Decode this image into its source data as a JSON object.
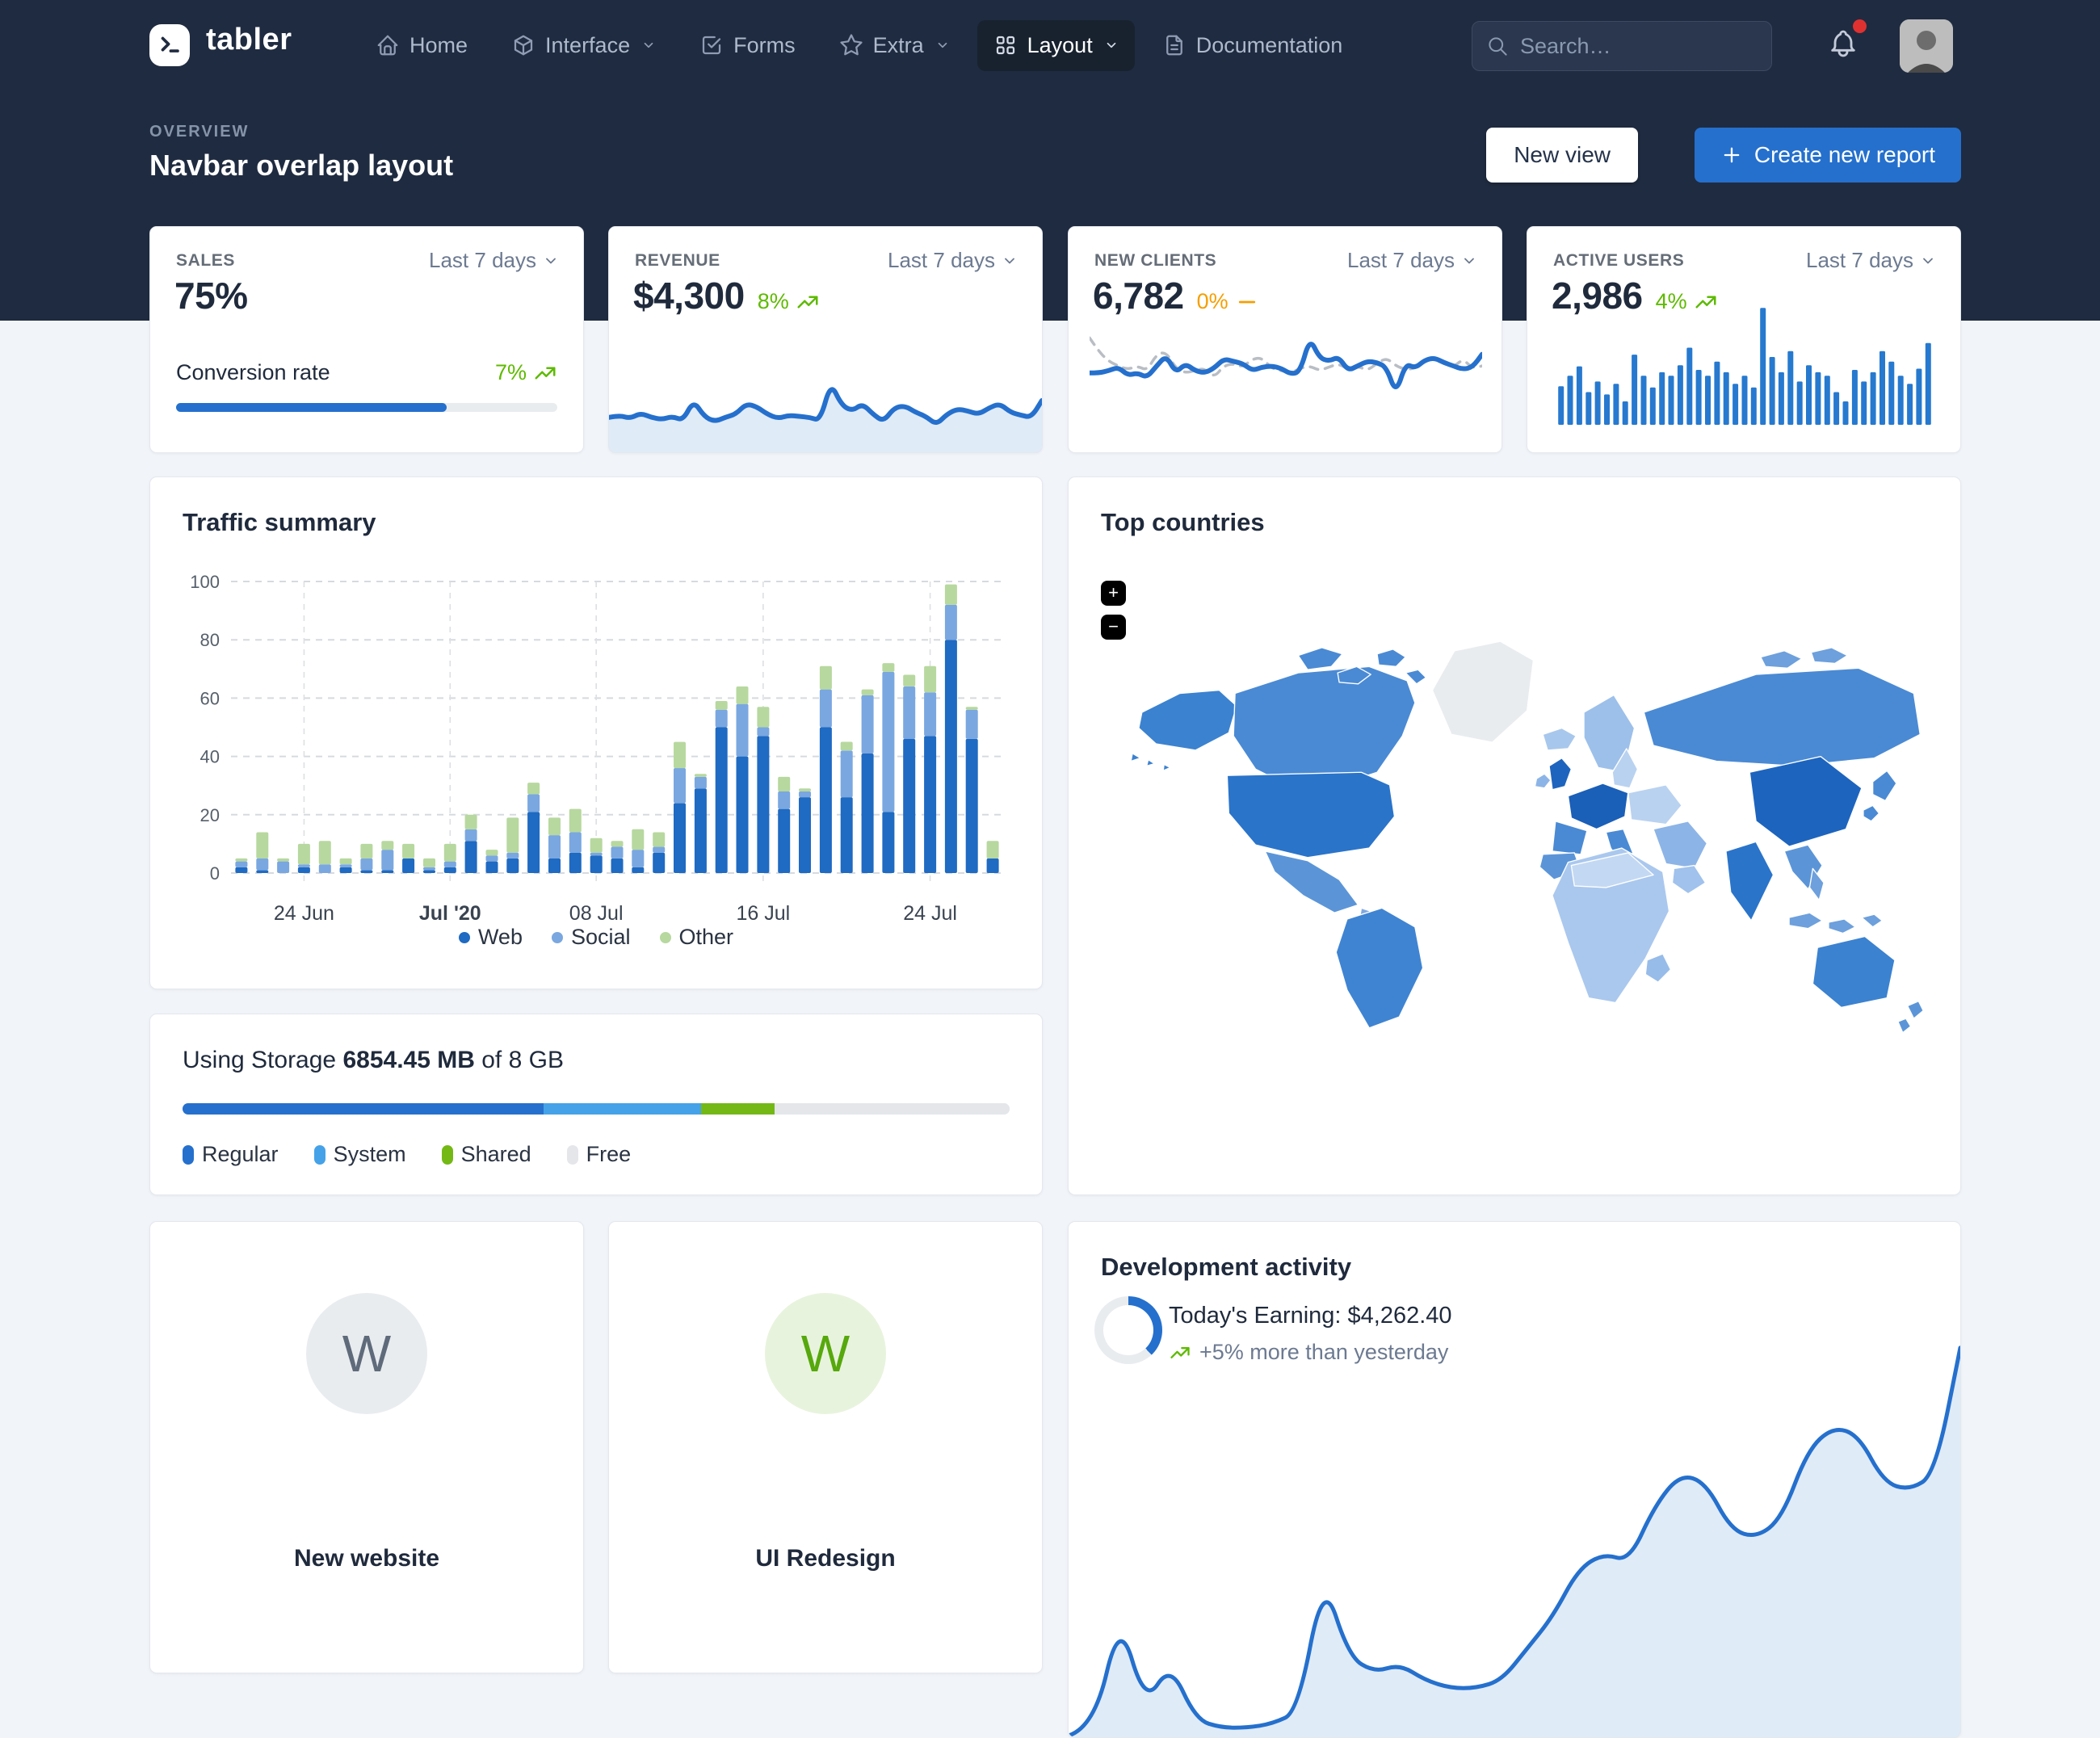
{
  "navbar": {
    "brand": "tabler",
    "items": [
      {
        "label": "Home",
        "icon": "home-icon",
        "chevron": false,
        "active": false
      },
      {
        "label": "Interface",
        "icon": "package-icon",
        "chevron": true,
        "active": false
      },
      {
        "label": "Forms",
        "icon": "checkbox-icon",
        "chevron": false,
        "active": false
      },
      {
        "label": "Extra",
        "icon": "star-icon",
        "chevron": true,
        "active": false
      },
      {
        "label": "Layout",
        "icon": "grid-icon",
        "chevron": true,
        "active": true
      },
      {
        "label": "Documentation",
        "icon": "file-text-icon",
        "chevron": false,
        "active": false
      }
    ],
    "search_placeholder": "Search…",
    "notification_dot_color": "#e03131"
  },
  "header": {
    "pretitle": "OVERVIEW",
    "title": "Navbar overlap layout",
    "new_view_label": "New view",
    "create_report_label": "Create new report"
  },
  "stats": {
    "sales": {
      "label": "SALES",
      "range": "Last 7 days",
      "value": "75%",
      "sub_label": "Conversion rate",
      "trend": "7%",
      "trend_dir": "up",
      "progress_pct": 71
    },
    "revenue": {
      "label": "REVENUE",
      "range": "Last 7 days",
      "value": "$4,300",
      "trend": "8%",
      "trend_dir": "up"
    },
    "clients": {
      "label": "NEW CLIENTS",
      "range": "Last 7 days",
      "value": "6,782",
      "trend": "0%",
      "trend_dir": "flat"
    },
    "users": {
      "label": "ACTIVE USERS",
      "range": "Last 7 days",
      "value": "2,986",
      "trend": "4%",
      "trend_dir": "up"
    }
  },
  "traffic": {
    "title": "Traffic summary",
    "legend": [
      {
        "label": "Web",
        "color": "#1f6ac2"
      },
      {
        "label": "Social",
        "color": "#7aa7e0"
      },
      {
        "label": "Other",
        "color": "#b7d89f"
      }
    ]
  },
  "countries": {
    "title": "Top countries",
    "zoom_in": "+",
    "zoom_out": "−"
  },
  "storage": {
    "prefix": "Using Storage",
    "used": "6854.45 MB",
    "mid": "of",
    "total": "8 GB",
    "segments": [
      {
        "label": "Regular",
        "pct": 43.7,
        "color": "#2570cd"
      },
      {
        "label": "System",
        "pct": 19.0,
        "color": "#45a2e8"
      },
      {
        "label": "Shared",
        "pct": 8.9,
        "color": "#74b816"
      },
      {
        "label": "Free",
        "pct": 28.4,
        "color": "#e4e6ea"
      }
    ]
  },
  "projects": [
    {
      "initial": "W",
      "name": "New website",
      "style": "gray"
    },
    {
      "initial": "W",
      "name": "UI Redesign",
      "style": "green"
    }
  ],
  "development": {
    "title": "Development activity",
    "earning": "Today's Earning: $4,262.40",
    "trend_note": "+5% more than yesterday",
    "ring_pct": 38,
    "ring_color": "#2570cd",
    "ring_track": "#e9ecef"
  },
  "colors": {
    "primary": "#2570cd",
    "green": "#5eba00",
    "yellow": "#f59f00",
    "navbar_bg": "#1f2b40",
    "page_bg": "#f1f4f9"
  },
  "chart_data": [
    {
      "id": "traffic-summary",
      "type": "bar",
      "stacked": true,
      "title": "Traffic summary",
      "xlabel": "",
      "ylabel": "",
      "ylim": [
        0,
        100
      ],
      "yticks": [
        0,
        20,
        40,
        60,
        80,
        100
      ],
      "grid": true,
      "legend_position": "bottom",
      "xticks": [
        {
          "index": 3,
          "label": "24 Jun",
          "bold": false
        },
        {
          "index": 10,
          "label": "Jul '20",
          "bold": true
        },
        {
          "index": 17,
          "label": "08 Jul",
          "bold": false
        },
        {
          "index": 25,
          "label": "16 Jul",
          "bold": false
        },
        {
          "index": 33,
          "label": "24 Jul",
          "bold": false
        }
      ],
      "series": [
        {
          "name": "Web",
          "color": "#1f6ac2",
          "values": [
            2,
            1,
            0,
            2,
            0,
            2,
            1,
            1,
            5,
            1,
            2,
            11,
            4,
            5,
            21,
            5,
            7,
            6,
            5,
            2,
            7,
            24,
            29,
            50,
            40,
            47,
            22,
            26,
            50,
            26,
            41,
            21,
            46,
            47,
            80,
            46,
            5
          ]
        },
        {
          "name": "Social",
          "color": "#7aa7e0",
          "values": [
            2,
            4,
            4,
            1,
            3,
            1,
            4,
            7,
            0,
            1,
            2,
            4,
            2,
            2,
            6,
            8,
            7,
            1,
            4,
            6,
            2,
            12,
            4,
            6,
            18,
            3,
            6,
            2,
            13,
            16,
            20,
            48,
            18,
            15,
            12,
            10,
            0
          ]
        },
        {
          "name": "Other",
          "color": "#b7d89f",
          "values": [
            1,
            9,
            1,
            7,
            8,
            2,
            5,
            3,
            5,
            3,
            6,
            5,
            2,
            12,
            4,
            6,
            8,
            5,
            2,
            7,
            5,
            9,
            1,
            3,
            6,
            7,
            5,
            1,
            8,
            3,
            2,
            3,
            4,
            9,
            7,
            1,
            6
          ]
        }
      ]
    },
    {
      "id": "revenue-spark",
      "type": "area",
      "ymax": 7.5,
      "color": "#2570cd",
      "fill": "rgba(37,112,205,0.14)",
      "stroke_width": 6,
      "values": [
        3,
        3.2,
        2.9,
        3.4,
        3,
        2.8,
        3.1,
        2.7,
        4.6,
        3.1,
        2.6,
        3,
        3.3,
        4.3,
        4,
        3.3,
        2.9,
        3.2,
        3.1,
        3,
        2.7,
        6.3,
        4.2,
        3.6,
        4.3,
        3.3,
        2.6,
        3.9,
        4.1,
        3.5,
        3.1,
        2.3,
        3.3,
        3.8,
        3.6,
        3.3,
        3.9,
        4.3,
        3.5,
        3.2,
        3,
        4.6
      ]
    },
    {
      "id": "new-clients",
      "type": "line",
      "ymax": 9,
      "series": [
        {
          "name": "Previous",
          "color": "#b9bec5",
          "dash": "10 9",
          "stroke_width": 3.5,
          "values": [
            8,
            6.8,
            6,
            5.6,
            5.3,
            5.6,
            5.2,
            6.6,
            6.8,
            5.4,
            5,
            5.2,
            5.4,
            4.6,
            5.6,
            5.8,
            5.5,
            6.2,
            6.3,
            5.4,
            5.2,
            5,
            5.4,
            5.6,
            5.2,
            5.5,
            5.8,
            5.3,
            5.6,
            5.2,
            5.8,
            6.3,
            5.6,
            5.3,
            5.4,
            6,
            6.2,
            5.8,
            5.5,
            6.2,
            5.4,
            5.6
          ]
        },
        {
          "name": "Current",
          "color": "#2570cd",
          "dash": "",
          "stroke_width": 6,
          "values": [
            5,
            5,
            5.2,
            5.5,
            4.8,
            5,
            4.6,
            5.6,
            6.5,
            5,
            5.8,
            5.2,
            5,
            5.4,
            6.2,
            6,
            5.8,
            5.2,
            5.5,
            5.6,
            5.4,
            4.9,
            5.1,
            8,
            6.3,
            6,
            6.4,
            5.2,
            5.6,
            6,
            5.9,
            5.5,
            3.2,
            5.8,
            5.4,
            6.1,
            6.3,
            5.9,
            5.6,
            5.3,
            5.5,
            6.6
          ]
        }
      ]
    },
    {
      "id": "active-users",
      "type": "bar",
      "color": "#2679cf",
      "ymax": 105,
      "values": [
        33,
        42,
        50,
        28,
        37,
        26,
        35,
        20,
        60,
        42,
        32,
        45,
        42,
        51,
        66,
        47,
        42,
        54,
        45,
        35,
        42,
        32,
        100,
        58,
        45,
        63,
        37,
        51,
        45,
        42,
        28,
        20,
        47,
        37,
        45,
        63,
        54,
        42,
        35,
        48,
        70
      ]
    },
    {
      "id": "development",
      "type": "area",
      "ymax": 100,
      "color": "#2570cd",
      "fill": "rgba(37,112,205,0.14)",
      "stroke_width": 5,
      "values": [
        0,
        2,
        30,
        8,
        18,
        4,
        2,
        2,
        3,
        6,
        40,
        20,
        16,
        18,
        14,
        12,
        12,
        14,
        22,
        30,
        42,
        46,
        44,
        58,
        66,
        64,
        52,
        50,
        55,
        72,
        78,
        76,
        64,
        62,
        66,
        98
      ]
    }
  ]
}
